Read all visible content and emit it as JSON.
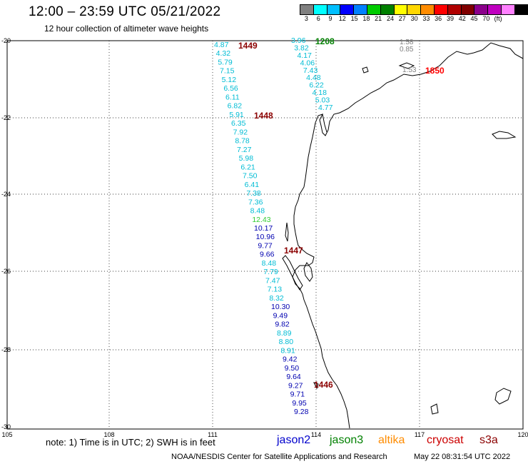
{
  "header": {
    "title": "12:00 – 23:59 UTC 05/21/2022",
    "subtitle": "12 hour collection of altimeter wave heights"
  },
  "scale": {
    "colors": [
      "#808080",
      "#00ffff",
      "#00bfff",
      "#0000ff",
      "#0080ff",
      "#00cc00",
      "#008000",
      "#ffff00",
      "#ffd700",
      "#ff8c00",
      "#ff0000",
      "#b00000",
      "#800000",
      "#8b008b",
      "#c000c0",
      "#ff80ff",
      "#000000"
    ],
    "labels": [
      "3",
      "6",
      "9",
      "12",
      "15",
      "18",
      "21",
      "24",
      "27",
      "30",
      "33",
      "36",
      "39",
      "42",
      "45",
      "70",
      "(ft)"
    ]
  },
  "axes": {
    "lat_labels": [
      "-20",
      "-22",
      "-24",
      "-26",
      "-28",
      "-30"
    ],
    "lon_labels": [
      "105",
      "108",
      "111",
      "114",
      "117",
      "120"
    ]
  },
  "tracks": [
    {
      "label": "1449",
      "color": "#8b0000",
      "satellite": "cryosat"
    },
    {
      "label": "1208",
      "color": "#008000",
      "satellite": "jason3"
    },
    {
      "label": "1448",
      "color": "#8b0000",
      "satellite": "cryosat"
    },
    {
      "label": "1447",
      "color": "#8b0000",
      "satellite": "cryosat"
    },
    {
      "label": "1446",
      "color": "#8b0000",
      "satellite": "cryosat"
    },
    {
      "label": "1850",
      "color": "#ff0000",
      "satellite": "s3a"
    }
  ],
  "values_track_a": [
    "4.87",
    "4.32",
    "5.79",
    "7.15",
    "5.12",
    "6.56",
    "6.11",
    "6.82",
    "5.91",
    "6.35",
    "7.92",
    "8.78",
    "7.27",
    "5.98",
    "6.21",
    "7.50",
    "6.41",
    "7.38",
    "7.36",
    "8.48",
    "12.43",
    "10.17",
    "10.96",
    "9.77",
    "9.66",
    "8.48",
    "7.79",
    "7.47",
    "7.13",
    "8.32",
    "10.30",
    "9.49",
    "9.82",
    "8.89",
    "8.80",
    "8.91",
    "9.42",
    "9.50",
    "9.64",
    "9.27",
    "9.71",
    "9.95",
    "9.28"
  ],
  "values_track_b": [
    "3.96",
    "3.82",
    "4.17",
    "4.06",
    "7.43",
    "4.48",
    "6.22",
    "4.18",
    "5.03",
    "4.77"
  ],
  "values_track_c": [
    "1.58",
    "0.85",
    "1.53"
  ],
  "footer": {
    "note": "note:  1) Time is in UTC;  2) SWH is in feet",
    "satellites": [
      {
        "name": "jason2",
        "color": "#0000cc"
      },
      {
        "name": "jason3",
        "color": "#008000"
      },
      {
        "name": "altika",
        "color": "#ff8c00"
      },
      {
        "name": "cryosat",
        "color": "#cc0000"
      },
      {
        "name": "s3a",
        "color": "#8b0000"
      }
    ],
    "credit": "NOAA/NESDIS Center for Satellite Applications and Research",
    "timestamp": "May 22 08:31:54 UTC 2022"
  }
}
